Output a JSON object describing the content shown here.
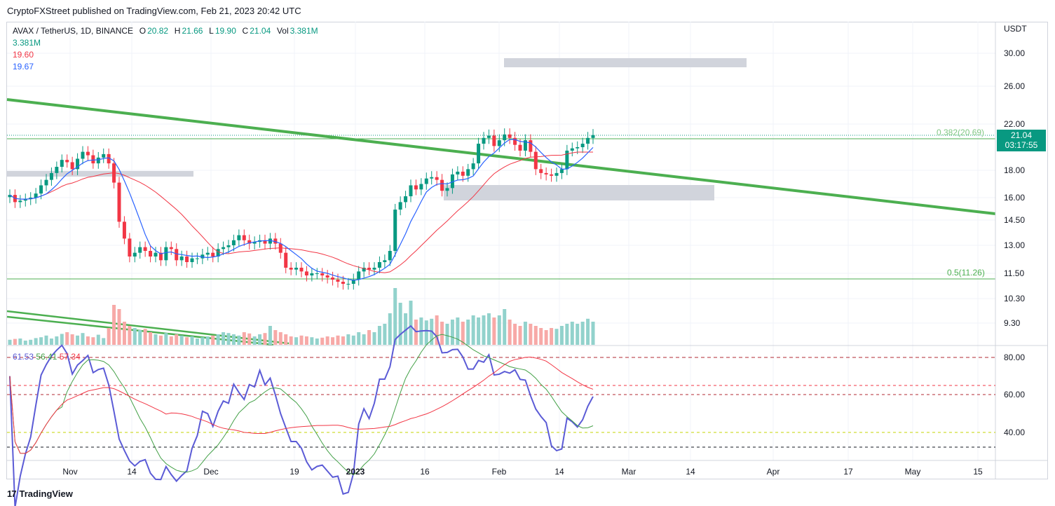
{
  "header": {
    "published": "CryptoFXStreet published on TradingView.com, Feb 21, 2023 20:42 UTC"
  },
  "legend": {
    "symbol": "AVAX / TetherUS, 1D, BINANCE",
    "o_label": "O",
    "o_value": "20.82",
    "h_label": "H",
    "h_value": "21.66",
    "l_label": "L",
    "l_value": "19.90",
    "c_label": "C",
    "c_value": "21.04",
    "vol_label": "Vol",
    "vol_value": "3.381M",
    "vol_ma": "3.381M",
    "ma_red": "19.60",
    "ma_blue": "19.67"
  },
  "rsi_legend": {
    "rsi": "61.53",
    "rsi_ma": "56.41",
    "rsi_ma2": "57.34"
  },
  "price_box": {
    "price": "21.04",
    "countdown": "03:17:55"
  },
  "footer": {
    "brand": "TradingView"
  },
  "colors": {
    "up": "#089981",
    "down": "#f23645",
    "trend": "#4caf50",
    "ma_red": "#f23645",
    "ma_blue": "#2962ff",
    "zone": "#d1d4dc"
  },
  "chart_data": {
    "type": "candlestick",
    "title": "AVAX / TetherUS, 1D, BINANCE",
    "currency": "USDT",
    "price_axis_ticks": [
      30.0,
      26.0,
      22.0,
      18.0,
      16.0,
      14.5,
      13.0,
      11.5,
      10.3,
      9.3
    ],
    "price_axis_labels": [
      "30.00",
      "26.00",
      "22.00",
      "18.00",
      "16.00",
      "14.50",
      "13.00",
      "11.50",
      "10.30",
      "9.30"
    ],
    "time_axis_labels": [
      "Nov",
      "14",
      "Dec",
      "19",
      "2023",
      "16",
      "Feb",
      "14",
      "Mar",
      "14",
      "Apr",
      "17",
      "May",
      "15"
    ],
    "fib_levels": [
      {
        "label": "0.382(20.69)",
        "price": 20.69
      },
      {
        "label": "0.5(11.26)",
        "price": 11.26
      }
    ],
    "last_price": 21.04,
    "candles_close": [
      16.2,
      15.7,
      15.8,
      15.9,
      16.0,
      16.3,
      16.9,
      17.3,
      17.8,
      18.3,
      18.9,
      18.7,
      18.1,
      19.0,
      19.6,
      19.3,
      18.6,
      19.1,
      19.4,
      18.6,
      17.1,
      14.4,
      13.4,
      12.4,
      12.6,
      12.9,
      12.7,
      12.4,
      12.6,
      12.2,
      12.9,
      12.8,
      12.2,
      12.4,
      12.1,
      12.3,
      12.3,
      12.5,
      12.6,
      12.4,
      12.8,
      12.9,
      13.0,
      13.3,
      13.6,
      13.3,
      13.1,
      13.2,
      13.3,
      13.1,
      13.4,
      13.1,
      12.6,
      11.8,
      11.7,
      11.8,
      11.6,
      11.4,
      11.5,
      11.5,
      11.4,
      11.3,
      11.2,
      11.1,
      11.0,
      11.0,
      11.2,
      11.6,
      11.8,
      11.7,
      11.8,
      12.1,
      12.2,
      12.7,
      15.2,
      15.7,
      16.1,
      16.9,
      16.6,
      17.0,
      17.4,
      17.5,
      17.3,
      16.5,
      16.7,
      17.7,
      17.9,
      17.6,
      18.1,
      18.6,
      20.3,
      20.8,
      21.0,
      20.1,
      20.6,
      21.1,
      20.8,
      20.2,
      19.7,
      20.6,
      19.6,
      18.1,
      17.8,
      17.7,
      17.6,
      17.8,
      18.1,
      19.7,
      19.9,
      20.0,
      20.3,
      20.8,
      21.04
    ],
    "volume_relative": [
      0.12,
      0.14,
      0.15,
      0.1,
      0.12,
      0.16,
      0.18,
      0.22,
      0.15,
      0.2,
      0.26,
      0.3,
      0.25,
      0.22,
      0.28,
      0.2,
      0.18,
      0.24,
      0.16,
      0.4,
      0.95,
      0.85,
      0.55,
      0.45,
      0.4,
      0.35,
      0.38,
      0.3,
      0.25,
      0.22,
      0.28,
      0.2,
      0.25,
      0.22,
      0.18,
      0.2,
      0.15,
      0.18,
      0.2,
      0.22,
      0.25,
      0.3,
      0.28,
      0.25,
      0.22,
      0.3,
      0.27,
      0.2,
      0.25,
      0.28,
      0.45,
      0.35,
      0.3,
      0.25,
      0.2,
      0.18,
      0.22,
      0.2,
      0.18,
      0.15,
      0.17,
      0.2,
      0.18,
      0.22,
      0.2,
      0.25,
      0.22,
      0.3,
      0.25,
      0.35,
      0.3,
      0.45,
      0.5,
      0.75,
      1.35,
      1.0,
      0.75,
      1.05,
      0.6,
      0.65,
      0.58,
      0.62,
      0.7,
      0.55,
      0.5,
      0.6,
      0.65,
      0.55,
      0.6,
      0.7,
      0.65,
      0.7,
      0.75,
      0.65,
      0.7,
      0.85,
      0.6,
      0.5,
      0.45,
      0.55,
      0.5,
      0.45,
      0.4,
      0.35,
      0.4,
      0.38,
      0.45,
      0.5,
      0.55,
      0.5,
      0.55,
      0.62,
      0.55
    ],
    "rsi": {
      "current": 61.53,
      "ma": 56.41,
      "ma2": 57.34,
      "levels": [
        80,
        60,
        40
      ],
      "axis_labels": [
        "80.00",
        "60.00",
        "40.00"
      ]
    }
  }
}
